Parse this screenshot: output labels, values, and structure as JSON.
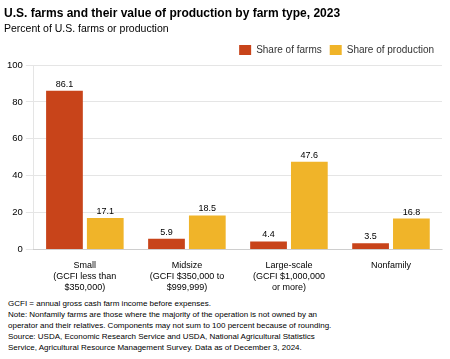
{
  "chart_data": {
    "type": "bar",
    "title": "U.S. farms and their value of production by farm type, 2023",
    "subtitle": "Percent of U.S. farms or production",
    "categories": [
      "Small\n(GCFI less than\n$350,000)",
      "Midsize\n(GCFI $350,000 to\n$999,999)",
      "Large-scale\n(GCFI $1,000,000\nor more)",
      "Nonfamily"
    ],
    "series": [
      {
        "name": "Share of farms",
        "color": "#C8441A",
        "values": [
          86.1,
          5.9,
          4.4,
          3.5
        ]
      },
      {
        "name": "Share of production",
        "color": "#F0B429",
        "values": [
          17.1,
          18.5,
          47.6,
          16.8
        ]
      }
    ],
    "ylim": [
      0,
      100
    ],
    "yticks": [
      0,
      20,
      40,
      60,
      80,
      100
    ],
    "grid": true,
    "legend": "upper right",
    "data_labels": true,
    "footnote": [
      "GCFI = annual gross cash farm income before expenses.",
      "Note: Nonfamily farms are those where the majority of the operation is not owned by an",
      "operator and their relatives. Components may not sum to 100 percent because of rounding.",
      "Source: USDA, Economic Research Service and USDA, National Agricultural Statistics",
      "Service, Agricultural Resource Management Survey. Data as of December 3, 2024."
    ]
  }
}
